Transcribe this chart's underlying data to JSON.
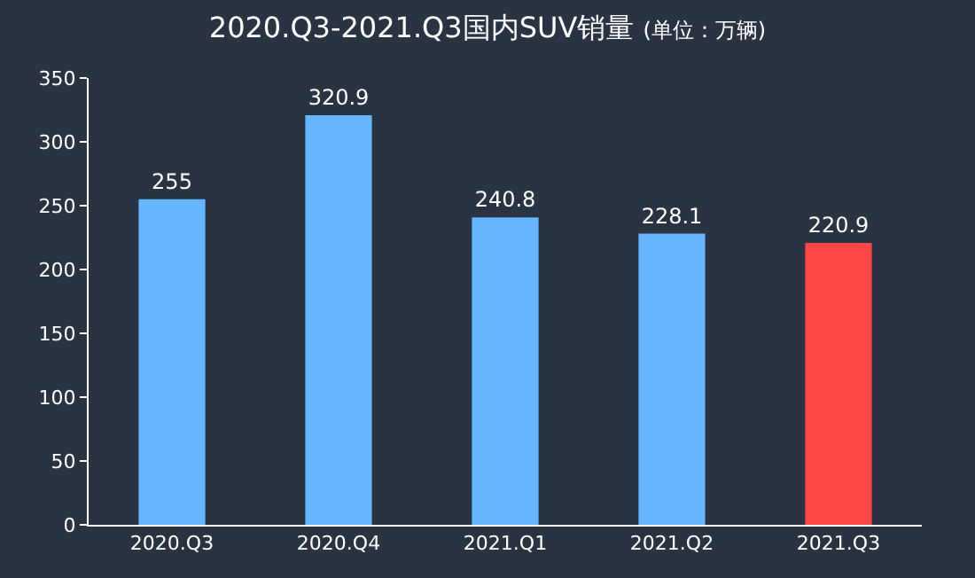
{
  "chart_data": {
    "type": "bar",
    "title": "2020.Q3-2021.Q3国内SUV销量",
    "subtitle": "(单位：万辆)",
    "categories": [
      "2020.Q3",
      "2020.Q4",
      "2021.Q1",
      "2021.Q2",
      "2021.Q3"
    ],
    "values": [
      255,
      320.9,
      240.8,
      228.1,
      220.9
    ],
    "colors": [
      "#66b5ff",
      "#66b5ff",
      "#66b5ff",
      "#66b5ff",
      "#ff4545"
    ],
    "ylim": [
      0,
      350
    ],
    "yticks": [
      0,
      50,
      100,
      150,
      200,
      250,
      300,
      350
    ],
    "grid": false,
    "data_labels": true
  }
}
